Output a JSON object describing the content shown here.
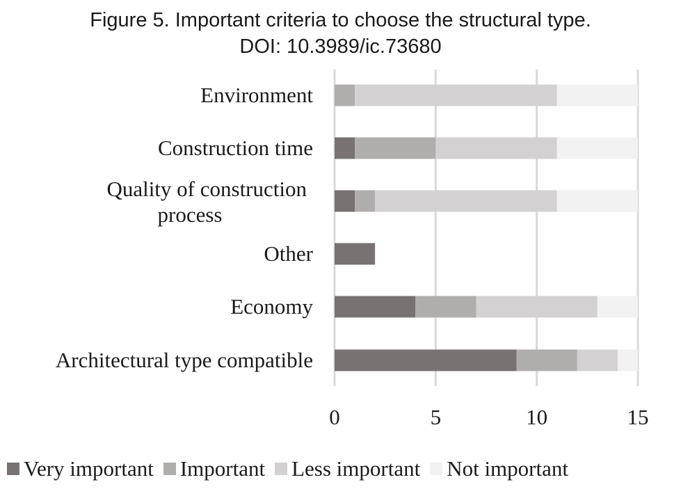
{
  "chart_data": {
    "type": "bar",
    "orientation": "horizontal",
    "stacked": true,
    "title": "Figure 5. Important criteria to choose the structural type.",
    "subtitle": "DOI: 10.3989/ic.73680",
    "categories": [
      "Environment",
      "Construction time",
      "Quality of construction process",
      "Other",
      "Economy",
      "Architectural type compatible"
    ],
    "category_lines": [
      [
        "Environment"
      ],
      [
        "Construction time"
      ],
      [
        "Quality of construction",
        "process"
      ],
      [
        "Other"
      ],
      [
        "Economy"
      ],
      [
        "Architectural type compatible"
      ]
    ],
    "series": [
      {
        "name": "Very important",
        "color": "#787272",
        "values": [
          0,
          1,
          1,
          2,
          4,
          9
        ]
      },
      {
        "name": "Important",
        "color": "#b0adad",
        "values": [
          1,
          4,
          1,
          0,
          3,
          3
        ]
      },
      {
        "name": "Less important",
        "color": "#d3d1d1",
        "values": [
          10,
          6,
          9,
          0,
          6,
          2
        ]
      },
      {
        "name": "Not important",
        "color": "#f2f2f2",
        "values": [
          4,
          4,
          4,
          0,
          2,
          1
        ]
      }
    ],
    "xlim": [
      0,
      15
    ],
    "xticks": [
      "0",
      "5",
      "10",
      "15"
    ],
    "grid": true,
    "legend_position": "bottom"
  }
}
